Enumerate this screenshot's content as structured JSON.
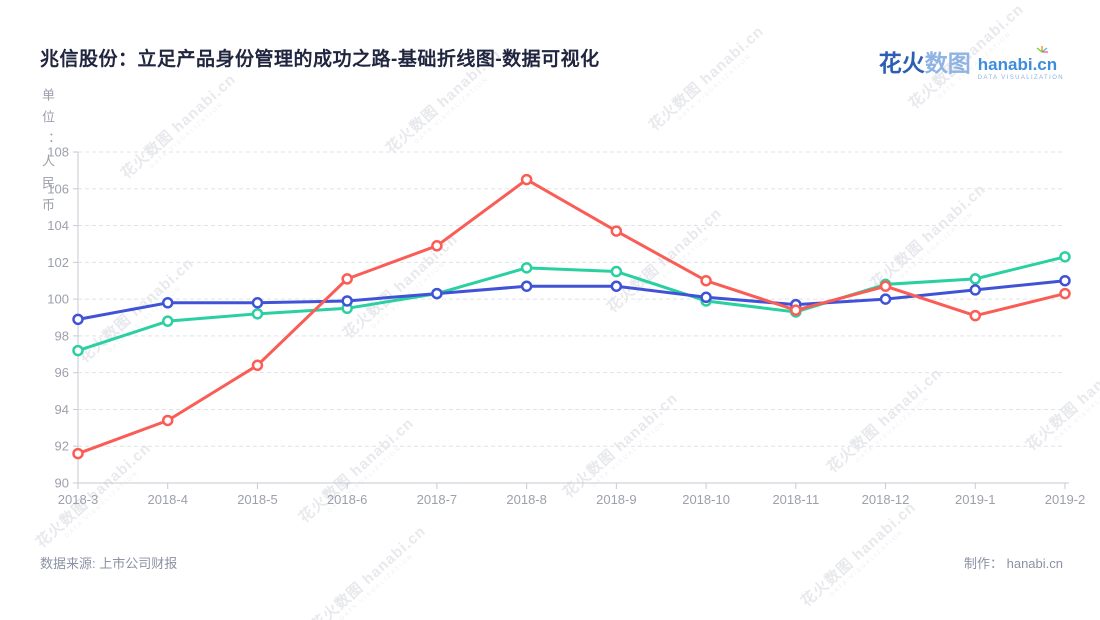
{
  "title": "兆信股份：立足产品身份管理的成功之路-基础折线图-数据可视化",
  "logo": {
    "part1": "花火",
    "part2": "数图",
    "domain": "hanabi.cn",
    "tagline": "DATA VISUALIZATION"
  },
  "unit_label": "单位：人民币",
  "watermark": {
    "text": "花火数图 hanabi.cn",
    "tagline": "DATA VISUALIZATION"
  },
  "footer": {
    "source": "数据来源: 上市公司财报",
    "credit": "制作： hanabi.cn"
  },
  "colors": {
    "red_series": "#F95D55",
    "green_series": "#2AD0A2",
    "blue_series": "#4053D6",
    "axis_line": "#C8CAD2",
    "grid_line": "#E2E3E7",
    "tick_label": "#9CA0AC",
    "title_text": "#20263F"
  },
  "chart_data": {
    "type": "line",
    "title": "兆信股份：立足产品身份管理的成功之路-基础折线图-数据可视化",
    "xlabel": "",
    "ylabel": "单位：人民币",
    "categories": [
      "2018-3",
      "2018-4",
      "2018-5",
      "2018-6",
      "2018-7",
      "2018-8",
      "2018-9",
      "2018-10",
      "2018-11",
      "2018-12",
      "2019-1",
      "2019-2"
    ],
    "series": [
      {
        "name": "green-series",
        "color": "#2AD0A2",
        "values": [
          97.2,
          98.8,
          99.2,
          99.5,
          100.3,
          101.7,
          101.5,
          99.9,
          99.3,
          100.8,
          101.1,
          102.3
        ]
      },
      {
        "name": "blue-series",
        "color": "#4053D6",
        "values": [
          98.9,
          99.8,
          99.8,
          99.9,
          100.3,
          100.7,
          100.7,
          100.1,
          99.7,
          100.0,
          100.5,
          101.0
        ]
      },
      {
        "name": "red-series",
        "color": "#F95D55",
        "values": [
          91.6,
          93.4,
          96.4,
          101.1,
          102.9,
          106.5,
          103.7,
          101.0,
          99.4,
          100.7,
          99.1,
          100.3
        ]
      }
    ],
    "ylim": [
      90,
      108
    ],
    "yticks": [
      90,
      92,
      94,
      96,
      98,
      100,
      102,
      104,
      106,
      108
    ],
    "grid": "horizontal-dashed",
    "legend_position": "none",
    "marker": "hollow-circle"
  }
}
